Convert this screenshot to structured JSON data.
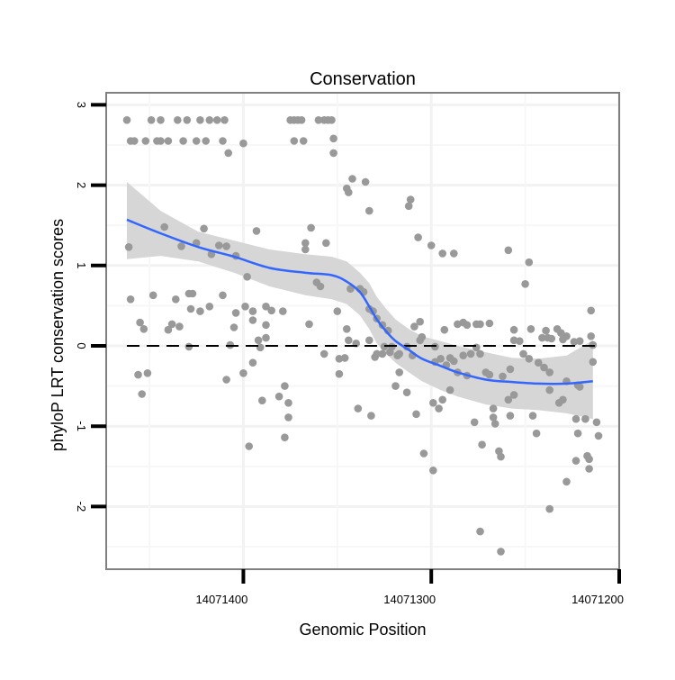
{
  "chart_data": {
    "type": "scatter",
    "title": "Conservation",
    "xlabel": "Genomic Position",
    "ylabel": "phyloP LRT conservation scores",
    "xlim": [
      14071473,
      14071200
    ],
    "x_reversed": true,
    "ylim": [
      -2.78,
      3.15
    ],
    "x_ticks": [
      14071400,
      14071300,
      14071200
    ],
    "x_tick_labels": [
      "14071400",
      "14071300",
      "14071200"
    ],
    "y_ticks": [
      -2,
      -1,
      0,
      1,
      2,
      3
    ],
    "y_tick_labels": [
      "-2",
      "-1",
      "0",
      "1",
      "2",
      "3"
    ],
    "grid": true,
    "reference_line": {
      "y": 0,
      "style": "dashed",
      "color": "#000000"
    },
    "colors": {
      "points": "#999999",
      "smooth": "#3366ff",
      "band": "#d6d6d6",
      "border": "#808080"
    },
    "points": [
      [
        14071462,
        2.81
      ],
      [
        14071449,
        2.81
      ],
      [
        14071444,
        2.81
      ],
      [
        14071435,
        2.81
      ],
      [
        14071430,
        2.81
      ],
      [
        14071423,
        2.81
      ],
      [
        14071418,
        2.81
      ],
      [
        14071414,
        2.81
      ],
      [
        14071410,
        2.81
      ],
      [
        14071375,
        2.81
      ],
      [
        14071373,
        2.81
      ],
      [
        14071371,
        2.81
      ],
      [
        14071369,
        2.81
      ],
      [
        14071360,
        2.81
      ],
      [
        14071357,
        2.81
      ],
      [
        14071355,
        2.81
      ],
      [
        14071353,
        2.81
      ],
      [
        14071460,
        2.55
      ],
      [
        14071458,
        2.55
      ],
      [
        14071452,
        2.55
      ],
      [
        14071446,
        2.55
      ],
      [
        14071444,
        2.55
      ],
      [
        14071440,
        2.55
      ],
      [
        14071432,
        2.55
      ],
      [
        14071425,
        2.55
      ],
      [
        14071420,
        2.55
      ],
      [
        14071411,
        2.55
      ],
      [
        14071373,
        2.55
      ],
      [
        14071368,
        2.55
      ],
      [
        14071408,
        2.4
      ],
      [
        14071400,
        2.52
      ],
      [
        14071352,
        2.58
      ],
      [
        14071352,
        2.4
      ],
      [
        14071345,
        1.96
      ],
      [
        14071344,
        1.91
      ],
      [
        14071342,
        2.08
      ],
      [
        14071335,
        2.04
      ],
      [
        14071333,
        1.68
      ],
      [
        14071312,
        1.74
      ],
      [
        14071311,
        1.82
      ],
      [
        14071307,
        1.35
      ],
      [
        14071300,
        1.25
      ],
      [
        14071294,
        1.15
      ],
      [
        14071288,
        1.15
      ],
      [
        14071259,
        1.19
      ],
      [
        14071248,
        1.04
      ],
      [
        14071250,
        0.77
      ],
      [
        14071215,
        0.44
      ],
      [
        14071461,
        1.23
      ],
      [
        14071442,
        1.48
      ],
      [
        14071433,
        1.24
      ],
      [
        14071425,
        1.28
      ],
      [
        14071421,
        1.46
      ],
      [
        14071417,
        1.14
      ],
      [
        14071413,
        1.25
      ],
      [
        14071409,
        1.24
      ],
      [
        14071404,
        1.12
      ],
      [
        14071393,
        1.43
      ],
      [
        14071398,
        0.86
      ],
      [
        14071367,
        1.28
      ],
      [
        14071364,
        1.47
      ],
      [
        14071367,
        1.2
      ],
      [
        14071356,
        1.28
      ],
      [
        14071359,
        0.74
      ],
      [
        14071361,
        0.79
      ],
      [
        14071460,
        0.58
      ],
      [
        14071448,
        0.63
      ],
      [
        14071436,
        0.58
      ],
      [
        14071429,
        0.65
      ],
      [
        14071427,
        0.65
      ],
      [
        14071428,
        0.46
      ],
      [
        14071423,
        0.43
      ],
      [
        14071418,
        0.49
      ],
      [
        14071411,
        0.63
      ],
      [
        14071455,
        0.29
      ],
      [
        14071453,
        0.21
      ],
      [
        14071438,
        0.27
      ],
      [
        14071440,
        0.2
      ],
      [
        14071434,
        0.24
      ],
      [
        14071405,
        0.23
      ],
      [
        14071404,
        0.41
      ],
      [
        14071395,
        0.32
      ],
      [
        14071395,
        0.43
      ],
      [
        14071388,
        0.26
      ],
      [
        14071385,
        0.44
      ],
      [
        14071392,
        0.07
      ],
      [
        14071388,
        0.1
      ],
      [
        14071399,
        0.49
      ],
      [
        14071388,
        0.49
      ],
      [
        14071379,
        0.43
      ],
      [
        14071365,
        0.27
      ],
      [
        14071350,
        0.43
      ],
      [
        14071407,
        0.01
      ],
      [
        14071429,
        -0.01
      ],
      [
        14071456,
        -0.36
      ],
      [
        14071451,
        -0.34
      ],
      [
        14071454,
        -0.6
      ],
      [
        14071409,
        -0.42
      ],
      [
        14071400,
        -0.34
      ],
      [
        14071390,
        -0.68
      ],
      [
        14071397,
        -1.25
      ],
      [
        14071378,
        -0.5
      ],
      [
        14071381,
        -0.63
      ],
      [
        14071376,
        -0.71
      ],
      [
        14071376,
        -0.89
      ],
      [
        14071378,
        -1.14
      ],
      [
        14071395,
        -0.21
      ],
      [
        14071391,
        -0.02
      ],
      [
        14071357,
        -0.1
      ],
      [
        14071349,
        -0.16
      ],
      [
        14071349,
        -0.35
      ],
      [
        14071344,
        0.07
      ],
      [
        14071340,
        0.03
      ],
      [
        14071339,
        -0.78
      ],
      [
        14071332,
        -0.87
      ],
      [
        14071346,
        -0.15
      ],
      [
        14071330,
        -0.14
      ],
      [
        14071345,
        0.21
      ],
      [
        14071343,
        0.71
      ],
      [
        14071338,
        0.71
      ],
      [
        14071336,
        0.67
      ],
      [
        14071333,
        0.46
      ],
      [
        14071331,
        0.43
      ],
      [
        14071329,
        0.34
      ],
      [
        14071326,
        0.26
      ],
      [
        14071323,
        0.19
      ],
      [
        14071325,
        -0.01
      ],
      [
        14071321,
        -0.01
      ],
      [
        14071333,
        0.07
      ],
      [
        14071329,
        -0.1
      ],
      [
        14071322,
        -0.08
      ],
      [
        14071317,
        -0.1
      ],
      [
        14071313,
        -0.01
      ],
      [
        14071309,
        0.24
      ],
      [
        14071306,
        0.3
      ],
      [
        14071306,
        0.07
      ],
      [
        14071305,
        0.11
      ],
      [
        14071293,
        0.2
      ],
      [
        14071286,
        0.27
      ],
      [
        14071283,
        0.29
      ],
      [
        14071281,
        0.26
      ],
      [
        14071276,
        0.27
      ],
      [
        14071274,
        0.27
      ],
      [
        14071269,
        0.28
      ],
      [
        14071256,
        0.2
      ],
      [
        14071247,
        0.21
      ],
      [
        14071239,
        0.19
      ],
      [
        14071238,
        0.1
      ],
      [
        14071233,
        0.21
      ],
      [
        14071231,
        0.16
      ],
      [
        14071228,
        0.12
      ],
      [
        14071224,
        0.05
      ],
      [
        14071221,
        0.06
      ],
      [
        14071214,
        0.01
      ],
      [
        14071214,
        -0.2
      ],
      [
        14071215,
        0.12
      ],
      [
        14071256,
        0.07
      ],
      [
        14071253,
        0.06
      ],
      [
        14071241,
        0.1
      ],
      [
        14071236,
        0.09
      ],
      [
        14071230,
        0.08
      ],
      [
        14071326,
        -0.1
      ],
      [
        14071318,
        -0.12
      ],
      [
        14071317,
        -0.33
      ],
      [
        14071319,
        -0.5
      ],
      [
        14071313,
        -0.58
      ],
      [
        14071308,
        -0.85
      ],
      [
        14071304,
        -1.34
      ],
      [
        14071299,
        -1.55
      ],
      [
        14071310,
        -0.12
      ],
      [
        14071295,
        -0.16
      ],
      [
        14071298,
        -0.01
      ],
      [
        14071292,
        -0.24
      ],
      [
        14071298,
        -0.2
      ],
      [
        14071290,
        -0.15
      ],
      [
        14071286,
        -0.33
      ],
      [
        14071281,
        -0.37
      ],
      [
        14071290,
        -0.55
      ],
      [
        14071294,
        -0.67
      ],
      [
        14071299,
        -0.71
      ],
      [
        14071296,
        -0.78
      ],
      [
        14071288,
        -0.19
      ],
      [
        14071283,
        -0.12
      ],
      [
        14071279,
        -0.1
      ],
      [
        14071276,
        -0.02
      ],
      [
        14071274,
        -0.1
      ],
      [
        14071271,
        -0.33
      ],
      [
        14071269,
        -0.36
      ],
      [
        14071277,
        -0.95
      ],
      [
        14071273,
        -1.23
      ],
      [
        14071274,
        -2.31
      ],
      [
        14071266,
        -0.97
      ],
      [
        14071267,
        -0.78
      ],
      [
        14071264,
        -1.31
      ],
      [
        14071263,
        -1.38
      ],
      [
        14071262,
        -0.38
      ],
      [
        14071258,
        -0.29
      ],
      [
        14071259,
        -0.67
      ],
      [
        14071256,
        -0.61
      ],
      [
        14071258,
        -0.87
      ],
      [
        14071251,
        -0.1
      ],
      [
        14071248,
        -0.16
      ],
      [
        14071243,
        -0.21
      ],
      [
        14071240,
        -0.27
      ],
      [
        14071237,
        -0.33
      ],
      [
        14071237,
        -0.55
      ],
      [
        14071228,
        -0.44
      ],
      [
        14071230,
        -0.67
      ],
      [
        14071221,
        -0.51
      ],
      [
        14071222,
        -0.49
      ],
      [
        14071232,
        -0.71
      ],
      [
        14071223,
        -0.91
      ],
      [
        14071222,
        -1.09
      ],
      [
        14071218,
        -0.91
      ],
      [
        14071212,
        -0.95
      ],
      [
        14071211,
        -1.12
      ],
      [
        14071217,
        -1.37
      ],
      [
        14071216,
        -1.41
      ],
      [
        14071216,
        -1.53
      ],
      [
        14071223,
        -1.43
      ],
      [
        14071228,
        -1.69
      ],
      [
        14071237,
        -2.03
      ],
      [
        14071263,
        -2.56
      ],
      [
        14071244,
        -1.09
      ],
      [
        14071246,
        -0.87
      ],
      [
        14071267,
        -0.89
      ]
    ],
    "smooth": {
      "x": [
        14071462,
        14071444,
        14071424,
        14071405,
        14071386,
        14071367,
        14071353,
        14071345,
        14071338,
        14071333,
        14071329,
        14071324,
        14071319,
        14071312,
        14071305,
        14071295,
        14071286,
        14071271,
        14071257,
        14071243,
        14071228,
        14071214
      ],
      "y": [
        1.57,
        1.4,
        1.23,
        1.11,
        0.97,
        0.91,
        0.88,
        0.8,
        0.67,
        0.49,
        0.33,
        0.18,
        0.06,
        -0.05,
        -0.16,
        -0.25,
        -0.33,
        -0.42,
        -0.45,
        -0.47,
        -0.47,
        -0.44
      ],
      "upper": [
        2.04,
        1.68,
        1.42,
        1.31,
        1.2,
        1.14,
        1.11,
        1.05,
        0.91,
        0.78,
        0.61,
        0.46,
        0.33,
        0.21,
        0.12,
        0.06,
        0.0,
        -0.08,
        -0.15,
        -0.16,
        -0.12,
        0.07
      ],
      "lower": [
        1.08,
        1.12,
        1.05,
        0.91,
        0.74,
        0.63,
        0.58,
        0.52,
        0.38,
        0.21,
        0.03,
        -0.1,
        -0.21,
        -0.33,
        -0.44,
        -0.55,
        -0.63,
        -0.73,
        -0.78,
        -0.8,
        -0.84,
        -0.91
      ]
    }
  }
}
